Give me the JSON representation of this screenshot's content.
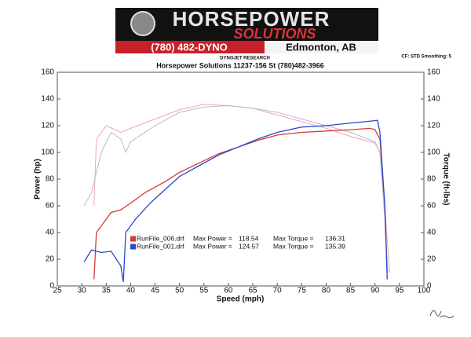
{
  "chart_data": {
    "type": "line",
    "banner": {
      "name_top": "HORSEPOWER",
      "name_bottom": "SOLUTIONS",
      "phone": "(780) 482-DYNO",
      "city": "Edmonton, AB"
    },
    "subtitle": "DYNOJET RESEARCH",
    "settings_note": "CF: STD  Smoothing: 5",
    "title": "Horsepower Solutions 11237-156 St (780)482-3966",
    "x_label": "Speed (mph)",
    "y_label": "Power (hp)",
    "y2_label": "Torque (ft-lbs)",
    "xlim": [
      25,
      100
    ],
    "xticks": [
      25,
      30,
      35,
      40,
      45,
      50,
      55,
      60,
      65,
      70,
      75,
      80,
      85,
      90,
      95,
      100
    ],
    "ylim": [
      0,
      160
    ],
    "yticks": [
      0,
      20,
      40,
      60,
      80,
      100,
      120,
      140,
      160
    ],
    "y2lim": [
      0,
      160
    ],
    "y2ticks": [
      0,
      20,
      40,
      60,
      80,
      100,
      120,
      140,
      160
    ],
    "max_power_label": "Max Power =",
    "max_torque_label": "Max Torque =",
    "series": [
      {
        "name": "RunFile_006.drf",
        "color": "#d63a3a",
        "max_power": 118.54,
        "max_torque": 136.31,
        "x": [
          32.5,
          33,
          35,
          36,
          38,
          40,
          43,
          47,
          50,
          54,
          58,
          62,
          66,
          70,
          75,
          80,
          85,
          89,
          90,
          91,
          92,
          92.5
        ],
        "values": [
          5,
          40,
          50,
          55,
          57,
          62,
          70,
          78,
          85,
          92,
          99,
          104,
          109,
          113,
          115,
          116,
          117,
          118,
          117,
          110,
          60,
          10
        ]
      },
      {
        "name": "RunFile_001.drf",
        "color": "#2a48d0",
        "max_power": 124.57,
        "max_torque": 135.39,
        "x": [
          30.5,
          32,
          34,
          36,
          38,
          38.5,
          39,
          41,
          44,
          47,
          50,
          54,
          58,
          62,
          66,
          70,
          75,
          80,
          85,
          88,
          90.5,
          91,
          92,
          92.5
        ],
        "values": [
          18,
          27,
          25,
          26,
          15,
          3,
          40,
          50,
          62,
          72,
          82,
          90,
          98,
          104,
          110,
          115,
          119,
          120,
          122,
          123,
          124,
          115,
          60,
          5
        ]
      },
      {
        "color": "#f2a6ae",
        "axis": "y2",
        "x": [
          32.5,
          33,
          35,
          38,
          40,
          45,
          50,
          55,
          60,
          65,
          70,
          75,
          80,
          85,
          90,
          91,
          92,
          93
        ],
        "values": [
          60,
          110,
          120,
          115,
          118,
          125,
          132,
          136,
          135,
          133,
          128,
          123,
          118,
          112,
          107,
          100,
          60,
          10
        ]
      },
      {
        "color": "#b4bcd2",
        "axis": "y2",
        "x": [
          30.5,
          32,
          34,
          36,
          38,
          39,
          40,
          45,
          50,
          55,
          60,
          65,
          70,
          75,
          80,
          85,
          90,
          91,
          92,
          92.5
        ],
        "values": [
          60,
          70,
          100,
          115,
          110,
          100,
          108,
          120,
          130,
          134,
          135,
          133,
          130,
          125,
          120,
          115,
          108,
          100,
          50,
          10
        ]
      }
    ]
  }
}
